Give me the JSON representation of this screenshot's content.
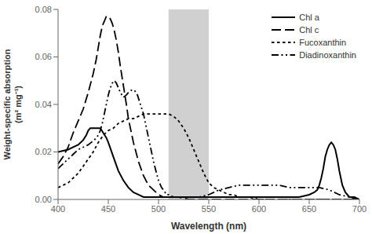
{
  "chart_data": {
    "type": "line",
    "xlabel": "Wavelength (nm)",
    "ylabel": "Weight-specific absorption\n(m² mg⁻¹)",
    "xlim": [
      400,
      700
    ],
    "ylim": [
      0,
      0.08
    ],
    "xticks": [
      400,
      450,
      500,
      550,
      600,
      650,
      700
    ],
    "yticks": [
      {
        "value": 0,
        "label": "0.00"
      },
      0.02,
      0.04,
      0.06,
      0.08
    ],
    "grid": false,
    "legend": "upper right",
    "shaded_span": {
      "x": [
        510,
        550
      ],
      "color": "#d0d0d0"
    },
    "series": [
      {
        "name": "Chl a",
        "color": "#000000",
        "line_style": "solid",
        "x": [
          400,
          410,
          415,
          420,
          425,
          428,
          430,
          432,
          435,
          438,
          440,
          442,
          445,
          448,
          450,
          455,
          460,
          465,
          470,
          475,
          480,
          485,
          490,
          495,
          500,
          510,
          520,
          530,
          540,
          550,
          560,
          570,
          580,
          590,
          600,
          610,
          620,
          630,
          640,
          650,
          655,
          658,
          660,
          662,
          664,
          666,
          668,
          670,
          672,
          674,
          676,
          678,
          680,
          683,
          686,
          690,
          695,
          700
        ],
        "values": [
          0.02,
          0.021,
          0.022,
          0.023,
          0.025,
          0.027,
          0.029,
          0.03,
          0.03,
          0.03,
          0.03,
          0.03,
          0.028,
          0.026,
          0.024,
          0.018,
          0.012,
          0.008,
          0.005,
          0.003,
          0.002,
          0.001,
          0.001,
          0.001,
          0.001,
          0.001,
          0.001,
          0.001,
          0.001,
          0.001,
          0.001,
          0.001,
          0.001,
          0.001,
          0.001,
          0.001,
          0.001,
          0.001,
          0.001,
          0.002,
          0.003,
          0.004,
          0.006,
          0.009,
          0.013,
          0.018,
          0.021,
          0.023,
          0.024,
          0.023,
          0.021,
          0.017,
          0.012,
          0.006,
          0.003,
          0.001,
          0.001,
          0.0
        ]
      },
      {
        "name": "Chl c",
        "color": "#000000",
        "line_style": "dashed",
        "x": [
          400,
          405,
          410,
          415,
          420,
          425,
          430,
          435,
          438,
          440,
          442,
          444,
          446,
          448,
          450,
          452,
          454,
          456,
          458,
          460,
          462,
          465,
          468,
          470,
          475,
          480,
          485,
          490,
          495,
          500,
          505,
          510,
          515,
          520,
          530,
          540,
          550,
          560,
          570,
          580,
          590,
          600,
          700
        ],
        "values": [
          0.015,
          0.018,
          0.022,
          0.028,
          0.033,
          0.038,
          0.045,
          0.053,
          0.059,
          0.064,
          0.069,
          0.073,
          0.075,
          0.077,
          0.077,
          0.076,
          0.074,
          0.071,
          0.067,
          0.062,
          0.056,
          0.048,
          0.04,
          0.034,
          0.024,
          0.016,
          0.01,
          0.006,
          0.004,
          0.002,
          0.001,
          0.001,
          0.001,
          0.001,
          0.0,
          0.0,
          0.0,
          0.0,
          0.0,
          0.0,
          0.0,
          0.0,
          0.0
        ]
      },
      {
        "name": "Fucoxanthin",
        "color": "#000000",
        "line_style": "dotted",
        "x": [
          400,
          405,
          410,
          415,
          420,
          425,
          430,
          435,
          440,
          445,
          450,
          455,
          460,
          465,
          470,
          475,
          480,
          485,
          490,
          495,
          500,
          505,
          510,
          515,
          520,
          525,
          530,
          535,
          540,
          545,
          550,
          555,
          560,
          565,
          570,
          575,
          580,
          590,
          600,
          700
        ],
        "values": [
          0.005,
          0.006,
          0.007,
          0.009,
          0.011,
          0.014,
          0.017,
          0.02,
          0.024,
          0.027,
          0.029,
          0.03,
          0.032,
          0.033,
          0.034,
          0.034,
          0.035,
          0.036,
          0.036,
          0.036,
          0.036,
          0.036,
          0.036,
          0.035,
          0.033,
          0.03,
          0.026,
          0.021,
          0.016,
          0.011,
          0.007,
          0.005,
          0.004,
          0.003,
          0.002,
          0.002,
          0.001,
          0.001,
          0.0,
          0.0
        ]
      },
      {
        "name": "Diadinoxanthin",
        "color": "#000000",
        "line_style": "dashdotdot",
        "x": [
          400,
          405,
          410,
          415,
          420,
          425,
          430,
          433,
          436,
          438,
          440,
          442,
          444,
          446,
          448,
          450,
          452,
          454,
          456,
          458,
          460,
          462,
          465,
          468,
          470,
          473,
          476,
          479,
          482,
          485,
          488,
          490,
          493,
          495,
          498,
          500,
          503,
          505,
          508,
          510,
          515,
          520,
          530,
          540,
          550,
          560,
          570,
          580,
          590,
          600,
          610,
          620,
          630,
          640,
          650,
          660,
          670,
          680,
          690,
          700
        ],
        "values": [
          0.013,
          0.015,
          0.017,
          0.019,
          0.021,
          0.022,
          0.023,
          0.024,
          0.025,
          0.026,
          0.027,
          0.029,
          0.032,
          0.036,
          0.04,
          0.044,
          0.047,
          0.049,
          0.05,
          0.049,
          0.047,
          0.045,
          0.043,
          0.044,
          0.045,
          0.046,
          0.046,
          0.044,
          0.04,
          0.036,
          0.03,
          0.026,
          0.02,
          0.016,
          0.011,
          0.008,
          0.005,
          0.004,
          0.002,
          0.002,
          0.001,
          0.001,
          0.001,
          0.001,
          0.002,
          0.004,
          0.005,
          0.006,
          0.006,
          0.006,
          0.006,
          0.006,
          0.005,
          0.005,
          0.005,
          0.005,
          0.004,
          0.002,
          0.001,
          0.0
        ]
      }
    ]
  }
}
